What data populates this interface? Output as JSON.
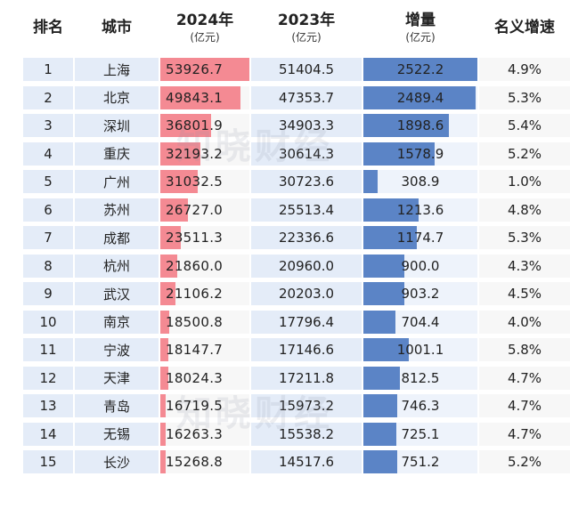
{
  "chart_data": {
    "type": "table",
    "headers": {
      "rank": "排名",
      "city": "城市",
      "y2024": "2024年",
      "y2024_unit": "(亿元)",
      "y2023": "2023年",
      "y2023_unit": "(亿元)",
      "increase": "增量",
      "increase_unit": "(亿元)",
      "growth": "名义增速"
    },
    "rows": [
      {
        "rank": "1",
        "city": "上海",
        "y2024": "53926.7",
        "y2023": "51404.5",
        "increase": "2522.2",
        "growth": "4.9%"
      },
      {
        "rank": "2",
        "city": "北京",
        "y2024": "49843.1",
        "y2023": "47353.7",
        "increase": "2489.4",
        "growth": "5.3%"
      },
      {
        "rank": "3",
        "city": "深圳",
        "y2024": "36801.9",
        "y2023": "34903.3",
        "increase": "1898.6",
        "growth": "5.4%"
      },
      {
        "rank": "4",
        "city": "重庆",
        "y2024": "32193.2",
        "y2023": "30614.3",
        "increase": "1578.9",
        "growth": "5.2%"
      },
      {
        "rank": "5",
        "city": "广州",
        "y2024": "31032.5",
        "y2023": "30723.6",
        "increase": "308.9",
        "growth": "1.0%"
      },
      {
        "rank": "6",
        "city": "苏州",
        "y2024": "26727.0",
        "y2023": "25513.4",
        "increase": "1213.6",
        "growth": "4.8%"
      },
      {
        "rank": "7",
        "city": "成都",
        "y2024": "23511.3",
        "y2023": "22336.6",
        "increase": "1174.7",
        "growth": "5.3%"
      },
      {
        "rank": "8",
        "city": "杭州",
        "y2024": "21860.0",
        "y2023": "20960.0",
        "increase": "900.0",
        "growth": "4.3%"
      },
      {
        "rank": "9",
        "city": "武汉",
        "y2024": "21106.2",
        "y2023": "20203.0",
        "increase": "903.2",
        "growth": "4.5%"
      },
      {
        "rank": "10",
        "city": "南京",
        "y2024": "18500.8",
        "y2023": "17796.4",
        "increase": "704.4",
        "growth": "4.0%"
      },
      {
        "rank": "11",
        "city": "宁波",
        "y2024": "18147.7",
        "y2023": "17146.6",
        "increase": "1001.1",
        "growth": "5.8%"
      },
      {
        "rank": "12",
        "city": "天津",
        "y2024": "18024.3",
        "y2023": "17211.8",
        "increase": "812.5",
        "growth": "4.7%"
      },
      {
        "rank": "13",
        "city": "青岛",
        "y2024": "16719.5",
        "y2023": "15973.2",
        "increase": "746.3",
        "growth": "4.7%"
      },
      {
        "rank": "14",
        "city": "无锡",
        "y2024": "16263.3",
        "y2023": "15538.2",
        "increase": "725.1",
        "growth": "4.7%"
      },
      {
        "rank": "15",
        "city": "长沙",
        "y2024": "15268.8",
        "y2023": "14517.6",
        "increase": "751.2",
        "growth": "5.2%"
      }
    ],
    "bar_scale": {
      "y2024_min": 14500,
      "y2024_max": 53926.7,
      "increase_max": 2522.2
    },
    "colors": {
      "bar2024": "#f48a93",
      "barIncrease": "#5b84c6",
      "rowBlue": "#e4ecf8",
      "rowGray": "#f7f7f7"
    }
  },
  "watermark": "知晓财经"
}
